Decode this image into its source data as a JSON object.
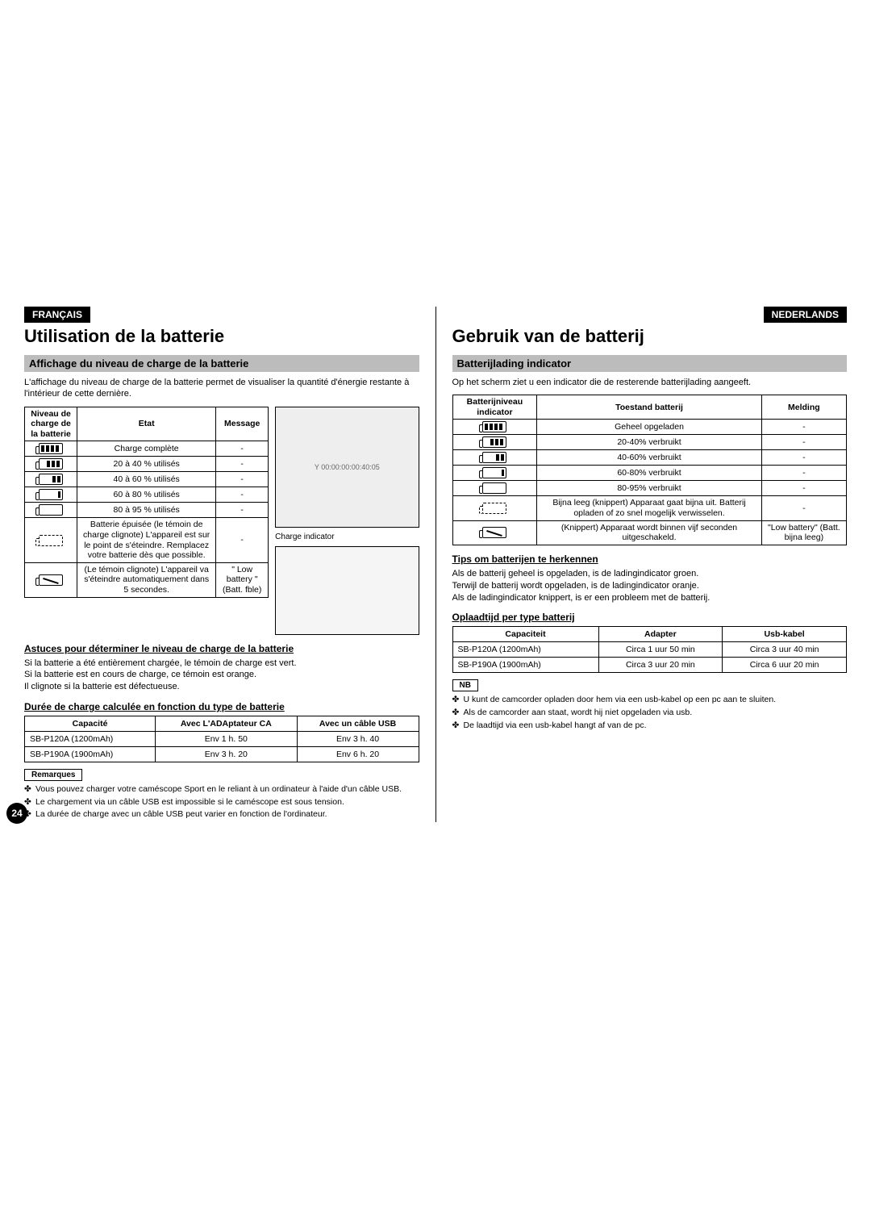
{
  "fr": {
    "lang": "FRANÇAIS",
    "title": "Utilisation de la batterie",
    "h2": "Affichage du niveau de charge de la batterie",
    "intro": "L'affichage du niveau de charge de la batterie permet de visualiser la quantité d'énergie restante à l'intérieur de cette dernière.",
    "table_headers": {
      "level": "Niveau de charge de la batterie",
      "state": "Etat",
      "msg": "Message"
    },
    "rows": [
      {
        "state": "Charge complète",
        "msg": "-"
      },
      {
        "state": "20 à 40 % utilisés",
        "msg": "-"
      },
      {
        "state": "40 à 60 % utilisés",
        "msg": "-"
      },
      {
        "state": "60 à 80 % utilisés",
        "msg": "-"
      },
      {
        "state": "80 à 95 % utilisés",
        "msg": "-"
      },
      {
        "state": "Batterie épuisée (le témoin de charge clignote) L'appareil est sur le point de s'éteindre. Remplacez votre batterie dès que possible.",
        "msg": "-"
      },
      {
        "state": "(Le témoin clignote) L'appareil va s'éteindre automatiquement dans 5 secondes.",
        "msg": "\" Low battery \" (Batt. fble)"
      }
    ],
    "tips_h": "Astuces pour déterminer le niveau de charge de la batterie",
    "tips_body": "Si la batterie a été entièrement chargée, le témoin de charge est vert.\nSi la batterie est en cours de charge, ce témoin est orange.\nIl clignote si la batterie est défectueuse.",
    "dur_h": "Durée de charge calculée en fonction du type de batterie",
    "charge_headers": {
      "cap": "Capacité",
      "ada": "Avec L'ADAptateur CA",
      "usb": "Avec un câble USB"
    },
    "charge_rows": [
      {
        "cap": "SB-P120A (1200mAh)",
        "ada": "Env 1 h. 50",
        "usb": "Env 3 h. 40"
      },
      {
        "cap": "SB-P190A (1900mAh)",
        "ada": "Env 3 h. 20",
        "usb": "Env 6 h. 20"
      }
    ],
    "notes_label": "Remarques",
    "notes": [
      "Vous pouvez charger votre caméscope Sport en le reliant à un ordinateur à l'aide d'un câble USB.",
      "Le chargement via un câble USB est impossible si le caméscope est sous tension.",
      "La durée de charge avec un câble USB peut varier en fonction de l'ordinateur."
    ],
    "page_num": "24",
    "charge_indicator_label": "Charge indicator",
    "illus_text": "Y 00:00:00:00:40:05"
  },
  "nl": {
    "lang": "NEDERLANDS",
    "title": "Gebruik van de batterij",
    "h2": "Batterijlading indicator",
    "intro": "Op het scherm ziet u een indicator die de resterende batterijlading aangeeft.",
    "table_headers": {
      "level": "Batterijniveau indicator",
      "state": "Toestand batterij",
      "msg": "Melding"
    },
    "rows": [
      {
        "state": "Geheel opgeladen",
        "msg": "-"
      },
      {
        "state": "20-40% verbruikt",
        "msg": "-"
      },
      {
        "state": "40-60% verbruikt",
        "msg": "-"
      },
      {
        "state": "60-80% verbruikt",
        "msg": "-"
      },
      {
        "state": "80-95% verbruikt",
        "msg": "-"
      },
      {
        "state": "Bijna leeg (knippert) Apparaat gaat bijna uit. Batterij opladen of zo snel mogelijk verwisselen.",
        "msg": "-"
      },
      {
        "state": "(Knippert) Apparaat wordt binnen vijf seconden uitgeschakeld.",
        "msg": "\"Low battery\" (Batt. bijna leeg)"
      }
    ],
    "tips_h": "Tips om batterijen te herkennen",
    "tips_body": "Als de batterij geheel is opgeladen, is de ladingindicator groen.\nTerwijl de batterij wordt opgeladen, is de ladingindicator oranje.\nAls de ladingindicator knippert, is er een probleem met de batterij.",
    "dur_h": "Oplaadtijd per type batterij",
    "charge_headers": {
      "cap": "Capaciteit",
      "ada": "Adapter",
      "usb": "Usb-kabel"
    },
    "charge_rows": [
      {
        "cap": "SB-P120A (1200mAh)",
        "ada": "Circa 1 uur 50 min",
        "usb": "Circa 3 uur 40 min"
      },
      {
        "cap": "SB-P190A (1900mAh)",
        "ada": "Circa 3 uur 20 min",
        "usb": "Circa 6 uur 20 min"
      }
    ],
    "notes_label": "NB",
    "notes": [
      "U kunt de camcorder opladen door hem via een usb-kabel op een pc aan te sluiten.",
      "Als de camcorder aan staat, wordt hij niet opgeladen via usb.",
      "De laadtijd via een usb-kabel hangt af van de pc."
    ]
  },
  "battery_levels": [
    "full",
    "3",
    "2",
    "1",
    "0",
    "dashed",
    "cross"
  ]
}
